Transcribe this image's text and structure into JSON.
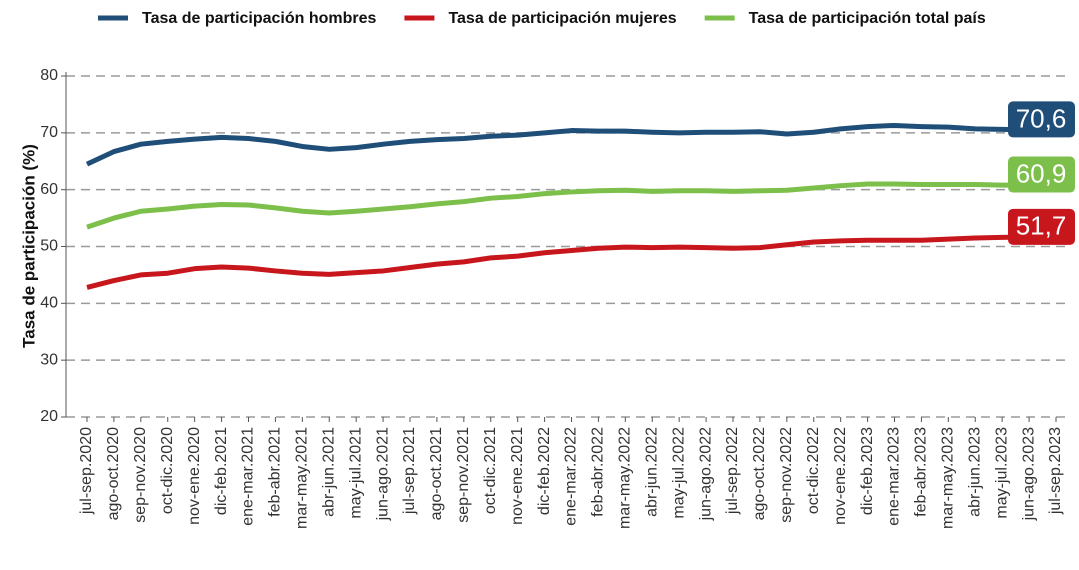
{
  "chart_data": {
    "type": "line",
    "y_label": "Tasa de participación (%)",
    "categories": [
      "jul-sep.2020",
      "ago-oct.2020",
      "sep-nov.2020",
      "oct-dic.2020",
      "nov-ene.2020",
      "dic-feb.2021",
      "ene-mar.2021",
      "feb-abr.2021",
      "mar-may.2021",
      "abr-jun.2021",
      "may-jul.2021",
      "jun-ago.2021",
      "jul-sep.2021",
      "ago-oct.2021",
      "sep-nov.2021",
      "oct-dic.2021",
      "nov-ene.2021",
      "dic-feb.2022",
      "ene-mar.2022",
      "feb-abr.2022",
      "mar-may.2022",
      "abr-jun.2022",
      "may-jul.2022",
      "jun-ago.2022",
      "jul-sep.2022",
      "ago-oct.2022",
      "sep-nov.2022",
      "oct-dic.2022",
      "nov-ene.2022",
      "dic-feb.2023",
      "ene-mar.2023",
      "feb-abr.2023",
      "mar-may.2023",
      "abr-jun.2023",
      "may-jul.2023",
      "jun-ago.2023",
      "jul-sep.2023"
    ],
    "series": [
      {
        "name": "Tasa de participación hombres",
        "color": "#1f4e79",
        "values": [
          64.5,
          66.7,
          68.0,
          68.5,
          68.9,
          69.2,
          69.0,
          68.5,
          67.6,
          67.1,
          67.4,
          68.0,
          68.5,
          68.8,
          69.0,
          69.4,
          69.6,
          70.0,
          70.4,
          70.3,
          70.3,
          70.1,
          70.0,
          70.1,
          70.1,
          70.2,
          69.8,
          70.1,
          70.7,
          71.1,
          71.3,
          71.1,
          71.0,
          70.7,
          70.6,
          70.5,
          70.6
        ],
        "value_labels": [
          null,
          null,
          null,
          null,
          null,
          null,
          null,
          null,
          null,
          null,
          null,
          null,
          null,
          null,
          null,
          null,
          null,
          null,
          null,
          null,
          null,
          null,
          null,
          null,
          null,
          null,
          null,
          null,
          null,
          null,
          null,
          null,
          null,
          null,
          null,
          null,
          "70,6"
        ]
      },
      {
        "name": "Tasa de participación mujeres",
        "color": "#c8161d",
        "values": [
          42.8,
          44.0,
          45.0,
          45.3,
          46.1,
          46.4,
          46.2,
          45.7,
          45.3,
          45.1,
          45.4,
          45.7,
          46.3,
          46.9,
          47.3,
          48.0,
          48.3,
          48.9,
          49.3,
          49.7,
          49.9,
          49.8,
          49.9,
          49.8,
          49.7,
          49.8,
          50.3,
          50.8,
          51.0,
          51.1,
          51.1,
          51.1,
          51.3,
          51.5,
          51.6,
          51.7,
          51.7
        ],
        "value_labels": [
          null,
          null,
          null,
          null,
          null,
          null,
          null,
          null,
          null,
          null,
          null,
          null,
          null,
          null,
          null,
          null,
          null,
          null,
          null,
          null,
          null,
          null,
          null,
          null,
          null,
          null,
          null,
          null,
          null,
          null,
          null,
          null,
          null,
          null,
          null,
          null,
          "51,7"
        ]
      },
      {
        "name": "Tasa de participación total país",
        "color": "#7cbf4a",
        "values": [
          53.4,
          55.0,
          56.2,
          56.6,
          57.1,
          57.4,
          57.3,
          56.8,
          56.2,
          55.9,
          56.2,
          56.6,
          57.0,
          57.5,
          57.9,
          58.5,
          58.8,
          59.3,
          59.6,
          59.8,
          59.9,
          59.7,
          59.8,
          59.8,
          59.7,
          59.8,
          59.9,
          60.3,
          60.7,
          61.0,
          61.0,
          60.9,
          60.9,
          60.9,
          60.8,
          60.8,
          60.9
        ],
        "value_labels": [
          null,
          null,
          null,
          null,
          null,
          null,
          null,
          null,
          null,
          null,
          null,
          null,
          null,
          null,
          null,
          null,
          null,
          null,
          null,
          null,
          null,
          null,
          null,
          null,
          null,
          null,
          null,
          null,
          null,
          null,
          null,
          null,
          null,
          null,
          null,
          null,
          "60,9"
        ]
      }
    ],
    "ylim": [
      20,
      80
    ],
    "yticks": [
      20,
      30,
      40,
      50,
      60,
      70,
      80
    ],
    "grid": true,
    "legend": "top"
  }
}
